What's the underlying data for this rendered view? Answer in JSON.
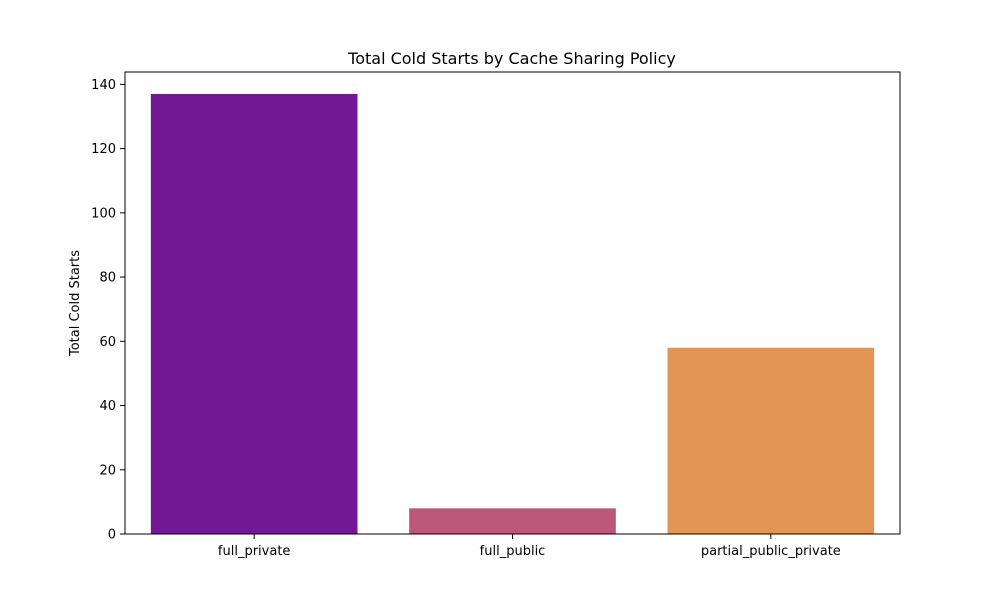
{
  "chart_data": {
    "type": "bar",
    "title": "Total Cold Starts by Cache Sharing Policy",
    "xlabel": "",
    "ylabel": "Total Cold Starts",
    "categories": [
      "full_private",
      "full_public",
      "partial_public_private"
    ],
    "values": [
      137,
      8,
      58
    ],
    "colors": [
      "#721894",
      "#bd5779",
      "#e19656"
    ],
    "ylim": [
      0,
      143.85
    ],
    "yticks": [
      0,
      20,
      40,
      60,
      80,
      100,
      120,
      140
    ],
    "grid": false,
    "legend": "none"
  }
}
